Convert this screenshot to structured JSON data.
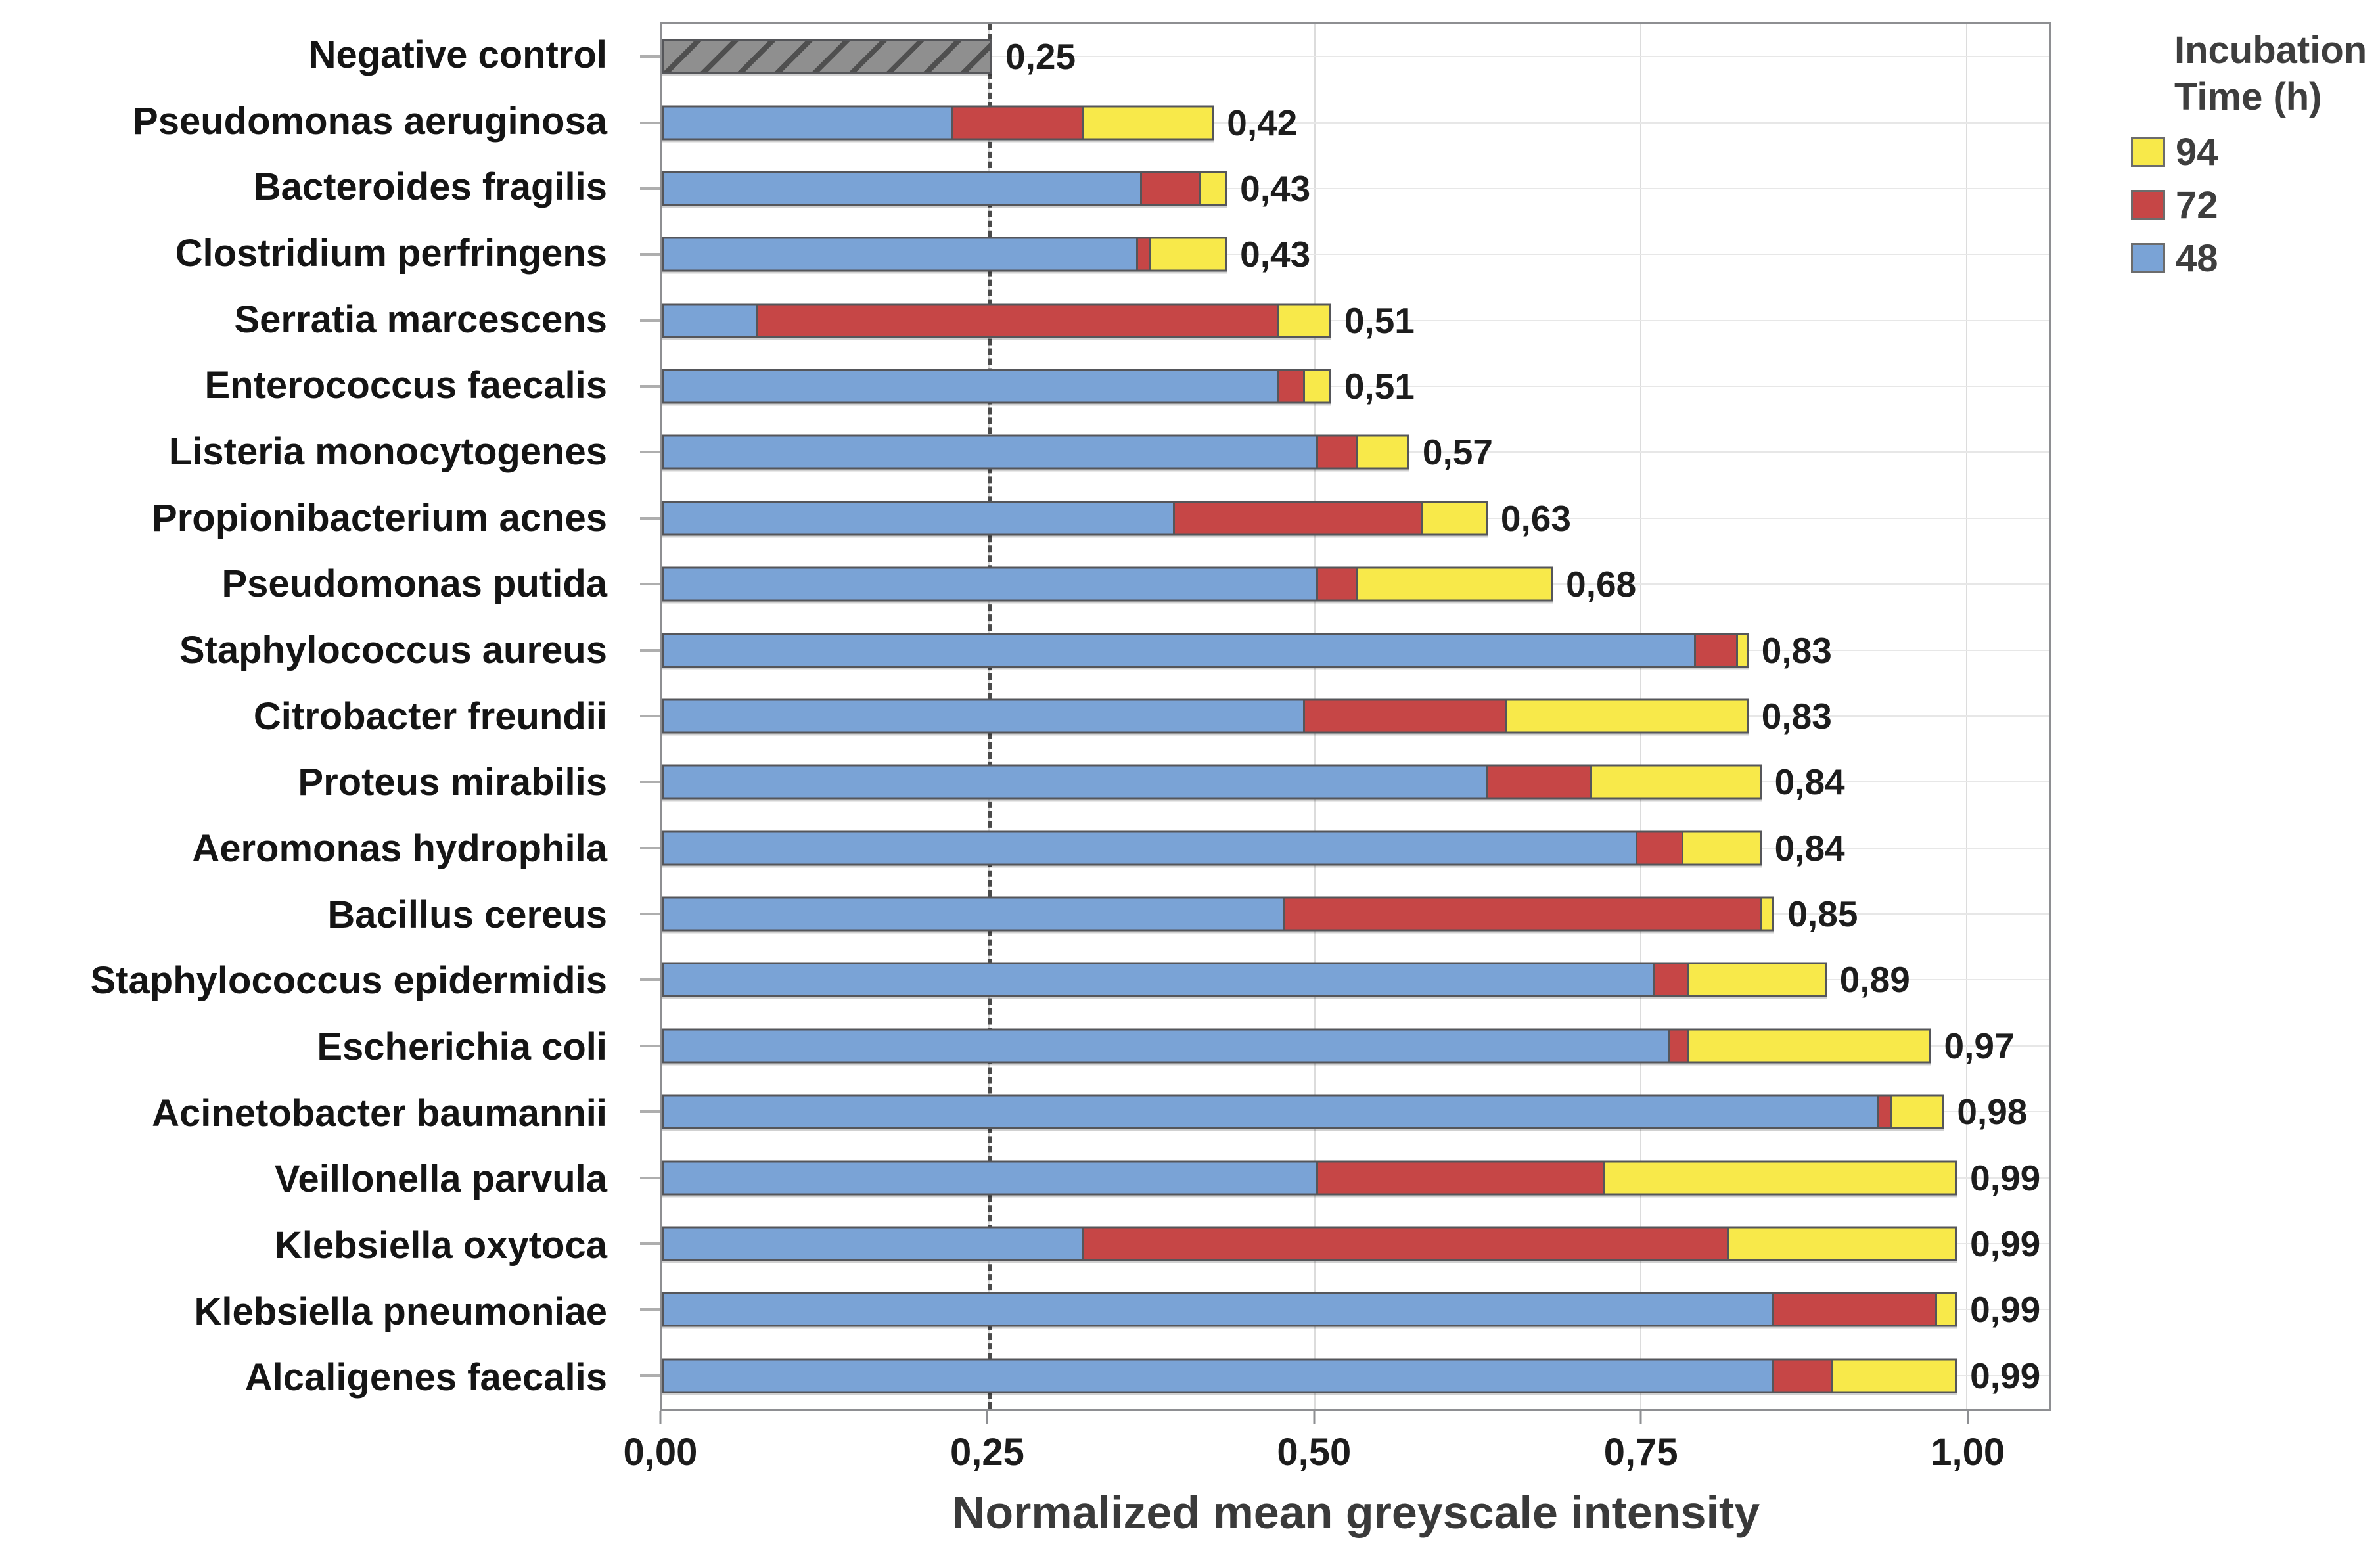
{
  "legend": {
    "title_line1": "Incubation",
    "title_line2": "Time (h)",
    "items": [
      {
        "label": "94",
        "color": "#f8e94a"
      },
      {
        "label": "72",
        "color": "#c64646"
      },
      {
        "label": "48",
        "color": "#7aa3d6"
      }
    ]
  },
  "chart_data": {
    "type": "bar",
    "orientation": "horizontal",
    "stacked": true,
    "title": "",
    "xlabel": "Normalized mean greyscale intensity",
    "ylabel": "",
    "xlim": [
      0,
      1.064
    ],
    "grid": "on",
    "refline_value": 0.25,
    "gridline_values": [
      0.25,
      0.5,
      0.75,
      1.0
    ],
    "x_ticks": [
      {
        "value": 0.0,
        "label": "0,00"
      },
      {
        "value": 0.25,
        "label": "0,25"
      },
      {
        "value": 0.5,
        "label": "0,50"
      },
      {
        "value": 0.75,
        "label": "0,75"
      },
      {
        "value": 1.0,
        "label": "1,00"
      }
    ],
    "legend_position": "top-right",
    "series_colors": {
      "h48": "#7aa3d6",
      "h72": "#c64646",
      "h94": "#f8e94a"
    },
    "hatch_colors": {
      "base": "#8f8f8f",
      "stripe": "#4f4f4f"
    },
    "rows": [
      {
        "category": "Negative control",
        "hatched": true,
        "cum_48": 0.25,
        "cum_72": 0.25,
        "total": 0.25,
        "label": "0,25"
      },
      {
        "category": "Pseudomonas aeruginosa",
        "hatched": false,
        "cum_48": 0.22,
        "cum_72": 0.32,
        "total": 0.42,
        "label": "0,42"
      },
      {
        "category": "Bacteroides fragilis",
        "hatched": false,
        "cum_48": 0.365,
        "cum_72": 0.41,
        "total": 0.43,
        "label": "0,43"
      },
      {
        "category": "Clostridium perfringens",
        "hatched": false,
        "cum_48": 0.362,
        "cum_72": 0.372,
        "total": 0.43,
        "label": "0,43"
      },
      {
        "category": "Serratia marcescens",
        "hatched": false,
        "cum_48": 0.07,
        "cum_72": 0.47,
        "total": 0.51,
        "label": "0,51"
      },
      {
        "category": "Enterococcus faecalis",
        "hatched": false,
        "cum_48": 0.47,
        "cum_72": 0.49,
        "total": 0.51,
        "label": "0,51"
      },
      {
        "category": "Listeria monocytogenes",
        "hatched": false,
        "cum_48": 0.5,
        "cum_72": 0.53,
        "total": 0.57,
        "label": "0,57"
      },
      {
        "category": "Propionibacterium acnes",
        "hatched": false,
        "cum_48": 0.39,
        "cum_72": 0.58,
        "total": 0.63,
        "label": "0,63"
      },
      {
        "category": "Pseudomonas putida",
        "hatched": false,
        "cum_48": 0.5,
        "cum_72": 0.53,
        "total": 0.68,
        "label": "0,68"
      },
      {
        "category": "Staphylococcus aureus",
        "hatched": false,
        "cum_48": 0.79,
        "cum_72": 0.822,
        "total": 0.83,
        "label": "0,83"
      },
      {
        "category": "Citrobacter freundii",
        "hatched": false,
        "cum_48": 0.49,
        "cum_72": 0.645,
        "total": 0.83,
        "label": "0,83"
      },
      {
        "category": "Proteus mirabilis",
        "hatched": false,
        "cum_48": 0.63,
        "cum_72": 0.71,
        "total": 0.84,
        "label": "0,84"
      },
      {
        "category": "Aeromonas hydrophila",
        "hatched": false,
        "cum_48": 0.745,
        "cum_72": 0.78,
        "total": 0.84,
        "label": "0,84"
      },
      {
        "category": "Bacillus cereus",
        "hatched": false,
        "cum_48": 0.475,
        "cum_72": 0.84,
        "total": 0.85,
        "label": "0,85"
      },
      {
        "category": "Staphylococcus epidermidis",
        "hatched": false,
        "cum_48": 0.758,
        "cum_72": 0.785,
        "total": 0.89,
        "label": "0,89"
      },
      {
        "category": "Escherichia coli",
        "hatched": false,
        "cum_48": 0.77,
        "cum_72": 0.785,
        "total": 0.97,
        "label": "0,97"
      },
      {
        "category": "Acinetobacter baumannii",
        "hatched": false,
        "cum_48": 0.93,
        "cum_72": 0.94,
        "total": 0.98,
        "label": "0,98"
      },
      {
        "category": "Veillonella parvula",
        "hatched": false,
        "cum_48": 0.5,
        "cum_72": 0.72,
        "total": 0.99,
        "label": "0,99"
      },
      {
        "category": "Klebsiella oxytoca",
        "hatched": false,
        "cum_48": 0.32,
        "cum_72": 0.815,
        "total": 0.99,
        "label": "0,99"
      },
      {
        "category": "Klebsiella pneumoniae",
        "hatched": false,
        "cum_48": 0.85,
        "cum_72": 0.975,
        "total": 0.99,
        "label": "0,99"
      },
      {
        "category": "Alcaligenes faecalis",
        "hatched": false,
        "cum_48": 0.85,
        "cum_72": 0.895,
        "total": 0.99,
        "label": "0,99"
      }
    ]
  }
}
